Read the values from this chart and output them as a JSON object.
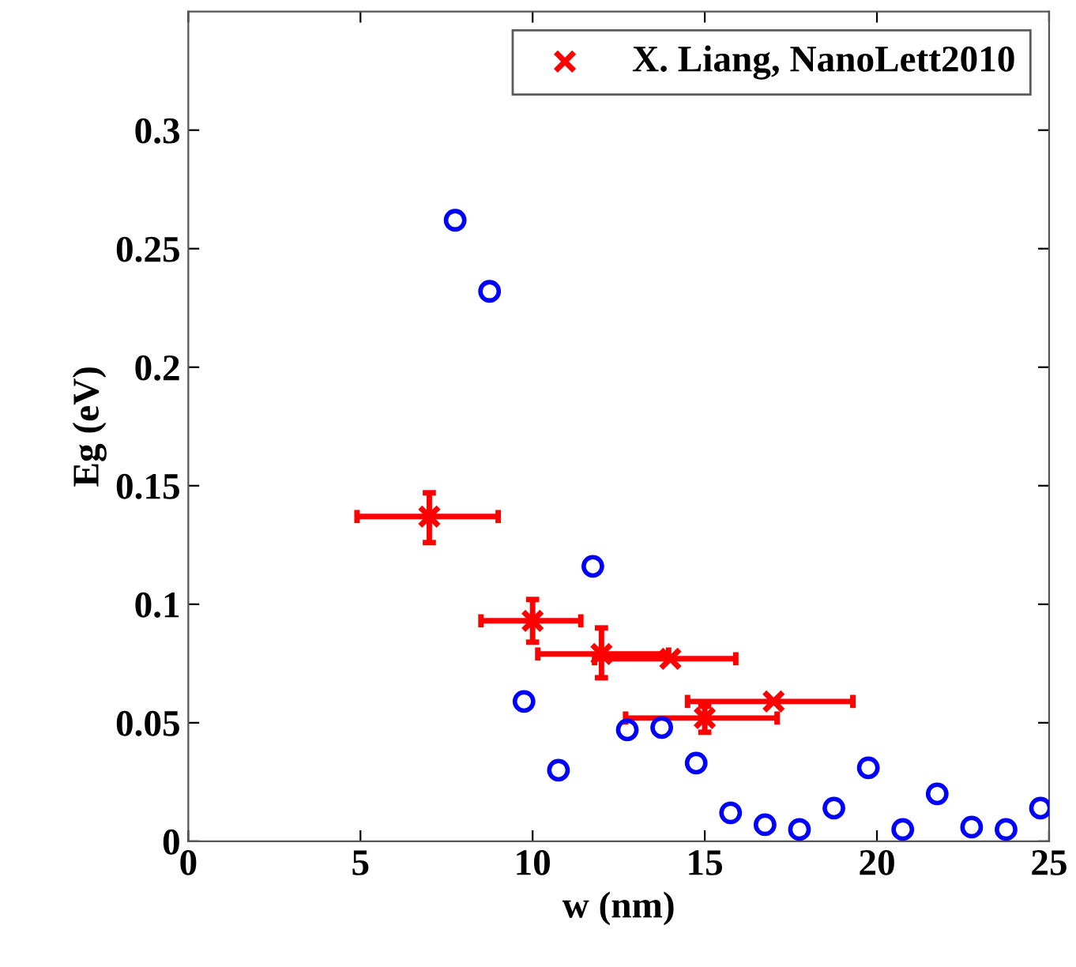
{
  "chart_data": {
    "type": "scatter",
    "xlabel": "w (nm)",
    "ylabel": "Eg (eV)",
    "xlim": [
      0,
      25
    ],
    "xticks": [
      0,
      5,
      10,
      15,
      20,
      25
    ],
    "ylim": [
      0,
      0.35
    ],
    "yticks": [
      0,
      0.05,
      0.1,
      0.15,
      0.2,
      0.25,
      0.3
    ],
    "grid": false,
    "legend": "top right",
    "series": [
      {
        "color": "#0000ff",
        "marker": "circle",
        "x": [
          7.75,
          8.75,
          9.75,
          10.75,
          11.75,
          12.75,
          13.75,
          14.75,
          15.75,
          16.75,
          17.75,
          18.75,
          19.75,
          20.75,
          21.75,
          22.75,
          23.75,
          24.75
        ],
        "values": [
          0.262,
          0.232,
          0.059,
          0.03,
          0.116,
          0.047,
          0.048,
          0.033,
          0.012,
          0.007,
          0.005,
          0.014,
          0.031,
          0.005,
          0.02,
          0.006,
          0.005,
          0.014
        ]
      },
      {
        "name": "X. Liang, NanoLett2010",
        "color": "#ff0000",
        "marker": "cross",
        "x": [
          7,
          10,
          12,
          14,
          15,
          17
        ],
        "values": [
          0.137,
          0.093,
          0.079,
          0.077,
          0.052,
          0.059
        ],
        "errors": [
          [
            0.126,
            0.147
          ],
          [
            0.084,
            0.102
          ],
          [
            0.069,
            0.09
          ],
          null,
          [
            0.046,
            0.057
          ],
          null
        ],
        "xerrors": [
          [
            4.9,
            9.0
          ],
          [
            8.5,
            11.4
          ],
          [
            10.15,
            13.95
          ],
          [
            11.8,
            15.9
          ],
          [
            12.7,
            17.1
          ],
          [
            14.5,
            19.3
          ]
        ]
      }
    ]
  }
}
